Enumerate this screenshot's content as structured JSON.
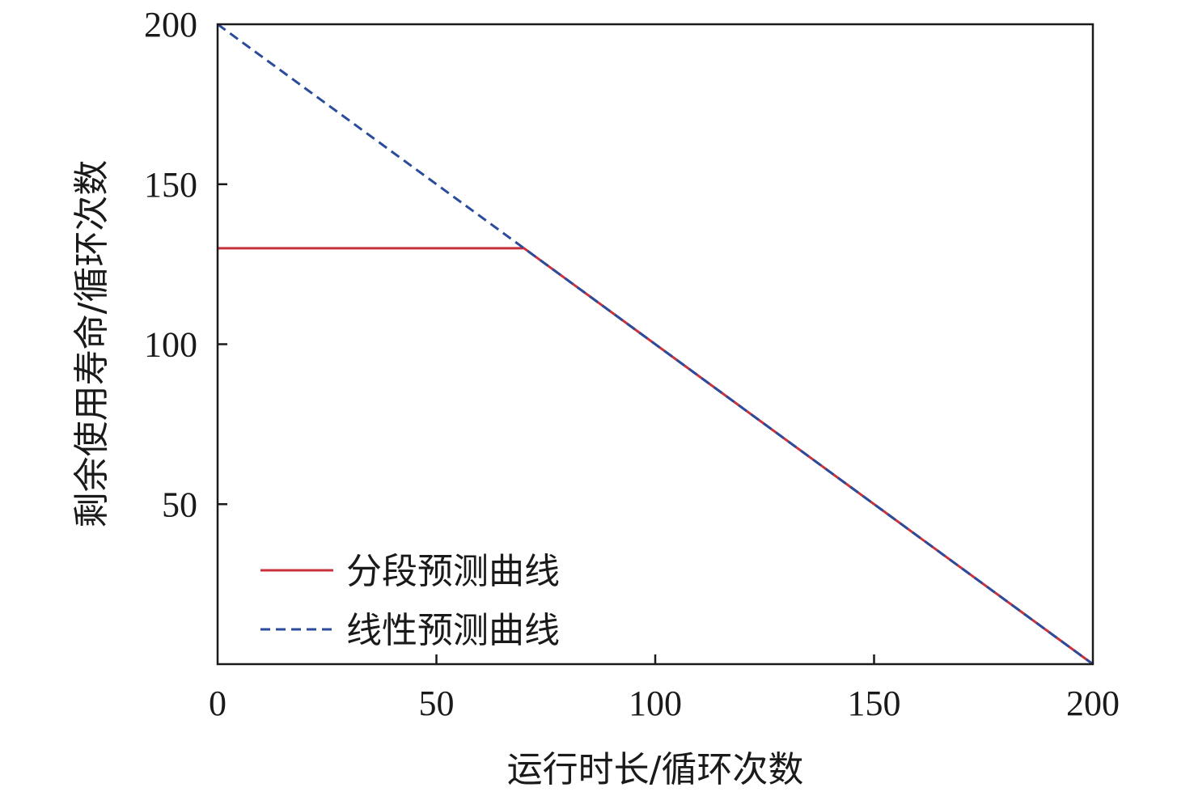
{
  "chart_data": {
    "type": "line",
    "xlabel": "运行时长/循环次数",
    "ylabel": "剩余使用寿命/循环次数",
    "xlim": [
      0,
      200
    ],
    "ylim": [
      0,
      200
    ],
    "xticks": [
      0,
      50,
      100,
      150,
      200
    ],
    "yticks": [
      50,
      100,
      150,
      200
    ],
    "grid": false,
    "legend_position": "bottom-left",
    "series": [
      {
        "name": "分段预测曲线",
        "color": "#c8323c",
        "style": "solid",
        "points": [
          [
            0,
            130
          ],
          [
            70,
            130
          ],
          [
            200,
            0
          ]
        ]
      },
      {
        "name": "线性预测曲线",
        "color": "#2b4b9b",
        "style": "dashed",
        "points": [
          [
            0,
            200
          ],
          [
            200,
            0
          ]
        ]
      }
    ]
  }
}
